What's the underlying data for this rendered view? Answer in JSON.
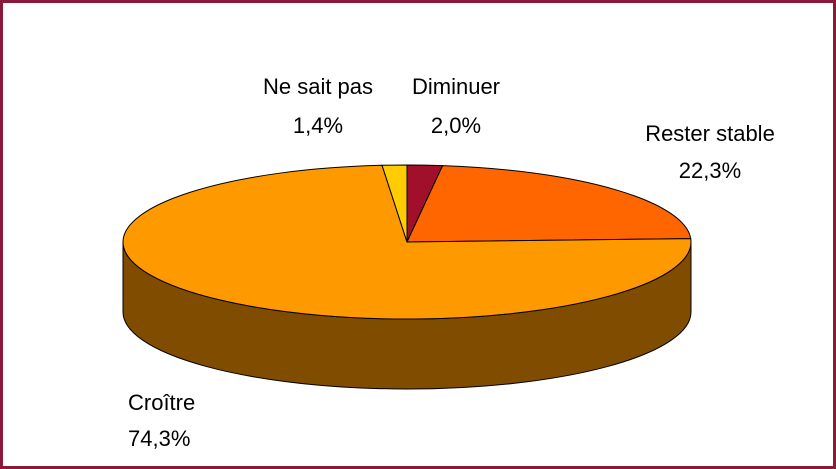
{
  "chart_data": {
    "type": "pie3d",
    "categories": [
      "Diminuer",
      "Rester stable",
      "Croître",
      "Ne sait pas"
    ],
    "values": [
      2.0,
      22.3,
      74.3,
      1.4
    ],
    "value_labels": [
      "2,0%",
      "22,3%",
      "74,3%",
      "1,4%"
    ],
    "colors": [
      "#a0102a",
      "#ff6600",
      "#ff9900",
      "#ffcc00"
    ]
  }
}
